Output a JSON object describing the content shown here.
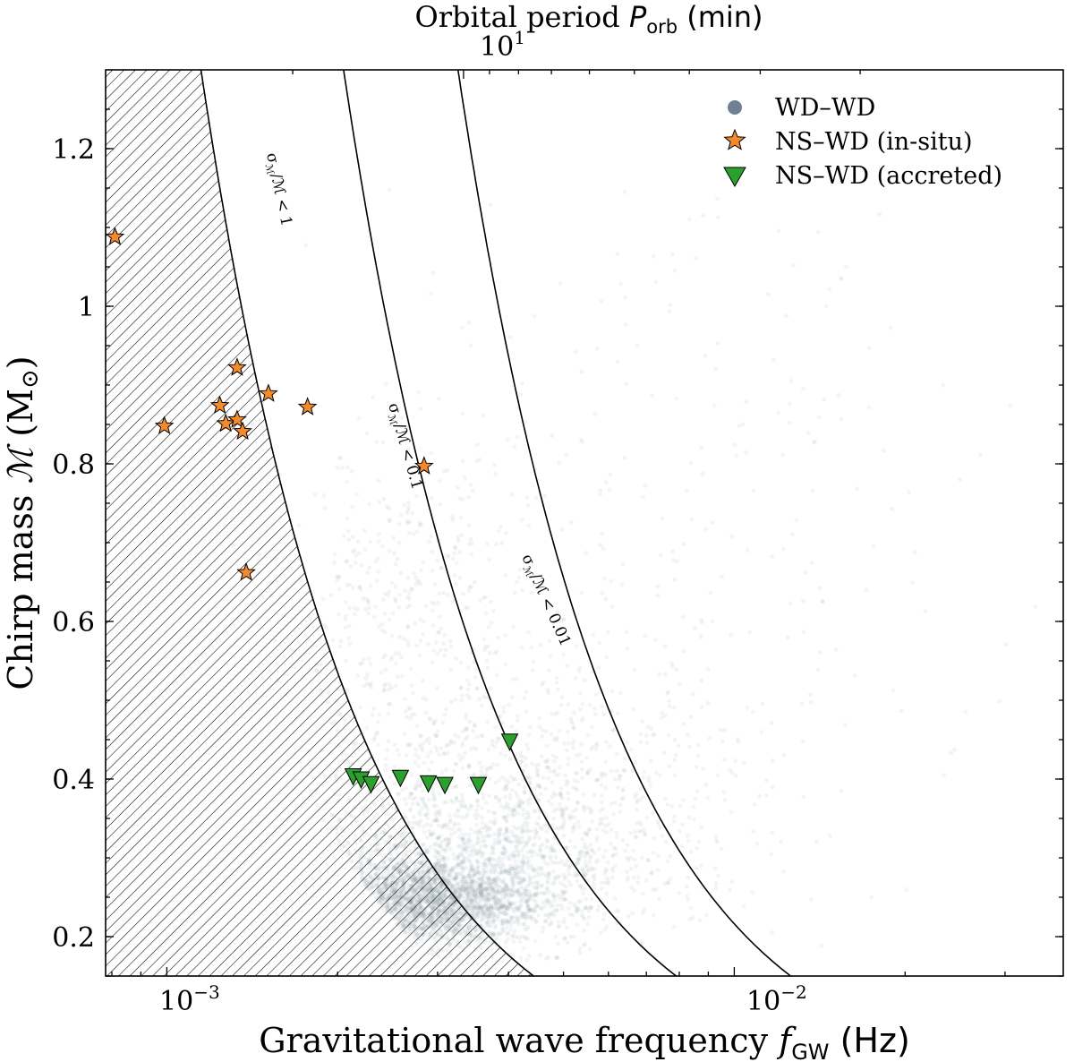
{
  "chart_data": {
    "type": "scatter",
    "xlabel_prefix": "Gravitational wave frequency ",
    "xlabel_sym": "f",
    "xlabel_sub": "GW",
    "xlabel_unit": " (Hz)",
    "ylabel_prefix": "Chirp mass ",
    "ylabel_sym": "ℳ",
    "ylabel_unit": " (M",
    "ylabel_sun": "⊙",
    "ylabel_close": ")",
    "top_label_prefix": "Orbital period ",
    "top_label_sym": "P",
    "top_label_sub": "orb",
    "top_label_unit": " (min)",
    "x_scale": "log",
    "xlim": [
      0.00078,
      0.038
    ],
    "ylim": [
      0.15,
      1.3
    ],
    "x_ticks": [
      {
        "value": 0.001,
        "base": "10",
        "exp": "−3"
      },
      {
        "value": 0.01,
        "base": "10",
        "exp": "−2"
      }
    ],
    "y_ticks": [
      {
        "value": 0.2,
        "label": "0.2"
      },
      {
        "value": 0.4,
        "label": "0.4"
      },
      {
        "value": 0.6,
        "label": "0.6"
      },
      {
        "value": 0.8,
        "label": "0.8"
      },
      {
        "value": 1.0,
        "label": "1"
      },
      {
        "value": 1.2,
        "label": "1.2"
      }
    ],
    "top_ticks": [
      {
        "period_min": 10,
        "base": "10",
        "exp": "1"
      }
    ],
    "legend_position": "top-right",
    "series": [
      {
        "name": "WD–WD",
        "marker": "circle",
        "color": "#708090",
        "note": "dense population of ~10^4 binaries (drawn as scatter cloud)"
      },
      {
        "name": "NS–WD (in-situ)",
        "marker": "star",
        "color": "#f28a2e",
        "points": [
          {
            "f": 0.00081,
            "m": 1.088
          },
          {
            "f": 0.00099,
            "m": 0.848
          },
          {
            "f": 0.00124,
            "m": 0.874
          },
          {
            "f": 0.00127,
            "m": 0.851
          },
          {
            "f": 0.00133,
            "m": 0.922
          },
          {
            "f": 0.00133,
            "m": 0.856
          },
          {
            "f": 0.00136,
            "m": 0.841
          },
          {
            "f": 0.00138,
            "m": 0.662
          },
          {
            "f": 0.00151,
            "m": 0.889
          },
          {
            "f": 0.00177,
            "m": 0.872
          },
          {
            "f": 0.00284,
            "m": 0.797
          }
        ]
      },
      {
        "name": "NS–WD (accreted)",
        "marker": "triangle-down",
        "color": "#2ca02c",
        "points": [
          {
            "f": 0.00213,
            "m": 0.404
          },
          {
            "f": 0.0022,
            "m": 0.4
          },
          {
            "f": 0.00229,
            "m": 0.394
          },
          {
            "f": 0.00258,
            "m": 0.402
          },
          {
            "f": 0.00289,
            "m": 0.395
          },
          {
            "f": 0.00309,
            "m": 0.393
          },
          {
            "f": 0.00354,
            "m": 0.393
          },
          {
            "f": 0.00402,
            "m": 0.448
          }
        ]
      }
    ],
    "curves": [
      {
        "name": "sigma-1",
        "label_a": "σ",
        "label_sub": "ℳ",
        "label_b": "/ℳ < 1",
        "f_at_0_2": 0.0037
      },
      {
        "name": "sigma-0.1",
        "label_a": "σ",
        "label_sub": "ℳ",
        "label_b": "/ℳ < 0.1",
        "f_at_0_2": 0.0066
      },
      {
        "name": "sigma-0.01",
        "label_a": "σ",
        "label_sub": "ℳ",
        "label_b": "/ℳ < 0.01",
        "f_at_0_2": 0.0105
      }
    ],
    "hatched_region": "area left of the σℳ/ℳ < 1 curve (hatched)"
  }
}
